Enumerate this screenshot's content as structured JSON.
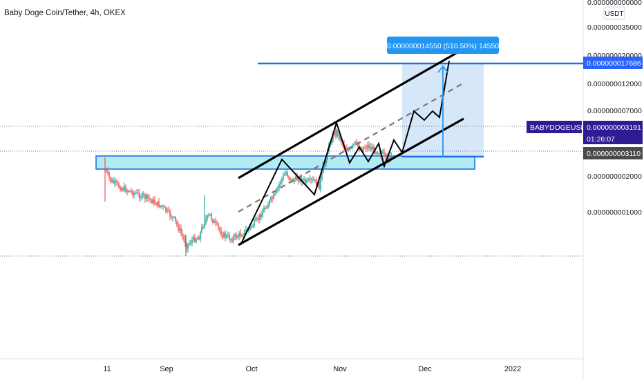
{
  "header": {
    "title": "Baby Doge Coin/Tether, 4h, OKEX"
  },
  "price_axis": {
    "currency": "USDT",
    "top_label": "0.000000000000",
    "labels": [
      "0.000000035000",
      "0.000000020000",
      "0.000000012000",
      "0.000000007000",
      "0.000000002000",
      "0.000000001000"
    ],
    "badges": {
      "target": {
        "text": "0.000000017686",
        "color": "#2962ff"
      },
      "symbol": {
        "text": "BABYDOGEUSDT",
        "color": "#311b92"
      },
      "last_price": {
        "text": "0.000000003191",
        "color": "#311b92"
      },
      "countdown": {
        "text": "01:26:07",
        "color": "#311b92"
      },
      "entry": {
        "text": "0.000000003110",
        "color": "#4a4a4a"
      }
    }
  },
  "time_axis": {
    "labels": [
      "11",
      "Sep",
      "Oct",
      "Nov",
      "Dec",
      "2022"
    ]
  },
  "measure": {
    "label": "0.000000014550 (510.50%) 14550",
    "fill": "#cfe3f8",
    "accent": "#2196f3"
  },
  "colors": {
    "up_candle": "#26a69a",
    "down_candle": "#ef5350",
    "zone_fill": "#b2ebf2",
    "zone_stroke": "#1e6fe6",
    "channel": "#000000",
    "target_line": "#1e6fe6"
  },
  "chart_data": {
    "type": "candlestick",
    "timeframe": "4h",
    "exchange": "OKEX",
    "symbol": "BABYDOGEUSDT",
    "scale": "log",
    "x_labels": [
      "11",
      "Sep",
      "Oct",
      "Nov",
      "Dec",
      "2022"
    ],
    "price_labels": [
      3.5e-08,
      2e-08,
      1.2e-08,
      7e-09,
      2e-09,
      1e-09
    ],
    "last_price": 3.191e-09,
    "entry_price": 3.11e-09,
    "target_price": 1.7686e-08,
    "projected_move": 1.455e-08,
    "projected_move_pct": 510.5
  }
}
